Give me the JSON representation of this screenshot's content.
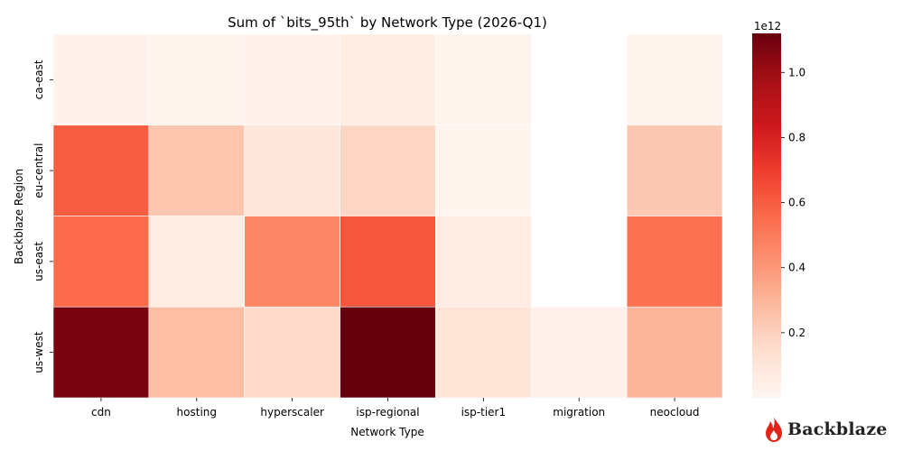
{
  "brand": {
    "name": "Backblaze",
    "logo_icon": "flame-icon",
    "color": "#e2231a"
  },
  "chart_data": {
    "type": "heatmap",
    "title": "Sum of `bits_95th` by Network Type (2026-Q1)",
    "xlabel": "Network Type",
    "ylabel": "Backblaze Region",
    "x_categories": [
      "cdn",
      "hosting",
      "hyperscaler",
      "isp-regional",
      "isp-tier1",
      "migration",
      "neocloud"
    ],
    "y_categories": [
      "ca-east",
      "eu-central",
      "us-east",
      "us-west"
    ],
    "values": [
      [
        0.02,
        0.012,
        0.018,
        0.06,
        0.012,
        null,
        0.015
      ],
      [
        0.6,
        0.24,
        0.1,
        0.18,
        0.008,
        null,
        0.23
      ],
      [
        0.56,
        0.06,
        0.46,
        0.62,
        0.06,
        null,
        0.54
      ],
      [
        1.08,
        0.27,
        0.16,
        1.12,
        0.11,
        0.03,
        0.3
      ]
    ],
    "value_scale": "1e12",
    "colorbar": {
      "colormap": "Reds",
      "range": [
        0.0,
        1.12
      ],
      "ticks": [
        0.2,
        0.4,
        0.6,
        0.8,
        1.0
      ],
      "tick_labels": [
        "0.2",
        "0.4",
        "0.6",
        "0.8",
        "1.0"
      ],
      "offset_label": "1e12"
    },
    "grid": false,
    "legend": "colorbar-right"
  }
}
